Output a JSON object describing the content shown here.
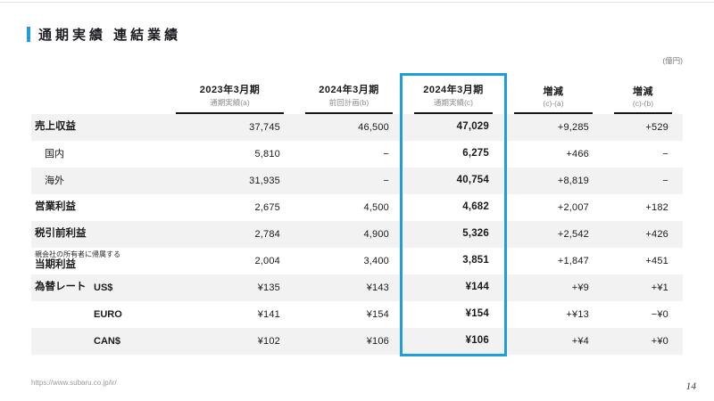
{
  "slide": {
    "title": "通期実績 連結業績",
    "unit_note": "(億円)",
    "footer_url": "https://www.subaru.co.jp/ir/",
    "page_number": "14"
  },
  "colors": {
    "accent_blue": "#1f9ed9",
    "row_stripe": "#f2f2f2"
  },
  "table": {
    "columns": [
      {
        "title": "2023年3月期",
        "subtitle": "通期実績(a)"
      },
      {
        "title": "2024年3月期",
        "subtitle": "前回計画(b)"
      },
      {
        "title": "2024年3月期",
        "subtitle": "通期実績(c)",
        "highlighted": true
      },
      {
        "title": "増減",
        "subtitle": "(c)-(a)"
      },
      {
        "title": "増減",
        "subtitle": "(c)-(b)"
      }
    ],
    "rows": [
      {
        "label": "売上収益",
        "values": [
          "37,745",
          "46,500",
          "47,029",
          "+9,285",
          "+529"
        ]
      },
      {
        "label": "国内",
        "values": [
          "5,810",
          "−",
          "6,275",
          "+466",
          "−"
        ]
      },
      {
        "label": "海外",
        "values": [
          "31,935",
          "−",
          "40,754",
          "+8,819",
          "−"
        ]
      },
      {
        "label": "営業利益",
        "values": [
          "2,675",
          "4,500",
          "4,682",
          "+2,007",
          "+182"
        ]
      },
      {
        "label": "税引前利益",
        "values": [
          "2,784",
          "4,900",
          "5,326",
          "+2,542",
          "+426"
        ]
      },
      {
        "label": "当期利益",
        "sublabel": "親会社の所有者に帰属する",
        "values": [
          "2,004",
          "3,400",
          "3,851",
          "+1,847",
          "+451"
        ]
      },
      {
        "label": "為替レート",
        "label2": "US$",
        "values": [
          "¥135",
          "¥143",
          "¥144",
          "+¥9",
          "+¥1"
        ]
      },
      {
        "label": "",
        "label2": "EURO",
        "values": [
          "¥141",
          "¥154",
          "¥154",
          "+¥13",
          "−¥0"
        ]
      },
      {
        "label": "",
        "label2": "CAN$",
        "values": [
          "¥102",
          "¥106",
          "¥106",
          "+¥4",
          "+¥0"
        ]
      }
    ]
  }
}
